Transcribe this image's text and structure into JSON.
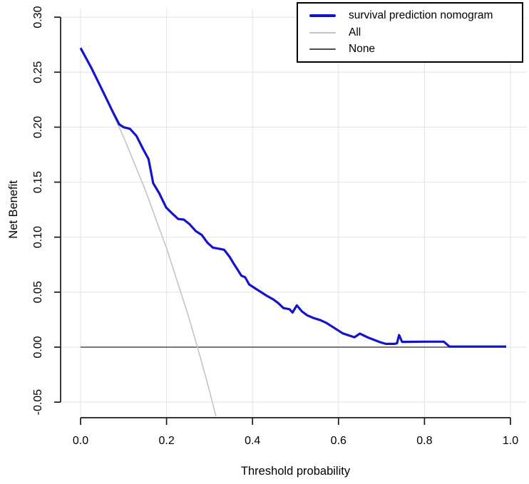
{
  "figure": {
    "x_axis_label": "Threshold probability",
    "y_axis_label": "Net Benefit"
  },
  "legend": {
    "position": "top-right",
    "items": [
      {
        "label": "survival prediction nomogram",
        "color": "#1414c8",
        "line_width": 4
      },
      {
        "label": "All",
        "color": "#c4c4c4",
        "line_width": 2
      },
      {
        "label": "None",
        "color": "#4d4d4d",
        "line_width": 2
      }
    ]
  },
  "chart_data": {
    "type": "line",
    "title": "",
    "xlabel": "Threshold probability",
    "ylabel": "Net Benefit",
    "xlim": [
      0,
      1
    ],
    "ylim": [
      -0.065,
      0.3
    ],
    "grid": true,
    "legend_position": "top-right",
    "x_ticks": [
      0.0,
      0.2,
      0.4,
      0.6,
      0.8,
      1.0
    ],
    "x_tick_labels": [
      "0.0",
      "0.2",
      "0.4",
      "0.6",
      "0.8",
      "1.0"
    ],
    "y_ticks": [
      -0.05,
      0.0,
      0.05,
      0.1,
      0.15,
      0.2,
      0.25,
      0.3
    ],
    "y_tick_labels": [
      "-0.05",
      "0.00",
      "0.05",
      "0.10",
      "0.15",
      "0.20",
      "0.25",
      "0.30"
    ],
    "colors": {
      "grid": "#e7e7e7",
      "axis": "#1a1a1a",
      "nomogram": "#1414c8",
      "all": "#c4c4c4",
      "none": "#4d4d4d"
    },
    "series": [
      {
        "name": "None",
        "color": "#4d4d4d",
        "width": 1.6,
        "points": [
          [
            0.0,
            0.0
          ],
          [
            0.99,
            0.0
          ]
        ]
      },
      {
        "name": "All",
        "color": "#c4c4c4",
        "width": 1.6,
        "points": [
          [
            0.0,
            0.272
          ],
          [
            0.05,
            0.2337
          ],
          [
            0.1,
            0.1911
          ],
          [
            0.15,
            0.1435
          ],
          [
            0.2,
            0.09
          ],
          [
            0.25,
            0.0293
          ],
          [
            0.28,
            -0.0111
          ],
          [
            0.3,
            -0.04
          ],
          [
            0.315,
            -0.0628
          ]
        ]
      },
      {
        "name": "survival prediction nomogram",
        "color": "#1414c8",
        "width": 3.2,
        "points": [
          [
            0.0,
            0.272
          ],
          [
            0.025,
            0.254
          ],
          [
            0.05,
            0.234
          ],
          [
            0.075,
            0.214
          ],
          [
            0.09,
            0.2025
          ],
          [
            0.1,
            0.2
          ],
          [
            0.115,
            0.1985
          ],
          [
            0.13,
            0.192
          ],
          [
            0.145,
            0.1805
          ],
          [
            0.158,
            0.171
          ],
          [
            0.169,
            0.149
          ],
          [
            0.183,
            0.14
          ],
          [
            0.199,
            0.127
          ],
          [
            0.212,
            0.122
          ],
          [
            0.227,
            0.1165
          ],
          [
            0.24,
            0.116
          ],
          [
            0.253,
            0.112
          ],
          [
            0.268,
            0.1055
          ],
          [
            0.282,
            0.102
          ],
          [
            0.295,
            0.095
          ],
          [
            0.308,
            0.0905
          ],
          [
            0.322,
            0.0895
          ],
          [
            0.334,
            0.0885
          ],
          [
            0.347,
            0.082
          ],
          [
            0.356,
            0.076
          ],
          [
            0.366,
            0.07
          ],
          [
            0.374,
            0.065
          ],
          [
            0.383,
            0.0635
          ],
          [
            0.392,
            0.057
          ],
          [
            0.41,
            0.0525
          ],
          [
            0.432,
            0.047
          ],
          [
            0.448,
            0.0435
          ],
          [
            0.46,
            0.04
          ],
          [
            0.472,
            0.0355
          ],
          [
            0.486,
            0.0345
          ],
          [
            0.493,
            0.0315
          ],
          [
            0.503,
            0.038
          ],
          [
            0.515,
            0.0325
          ],
          [
            0.527,
            0.029
          ],
          [
            0.542,
            0.0265
          ],
          [
            0.558,
            0.0245
          ],
          [
            0.572,
            0.022
          ],
          [
            0.584,
            0.019
          ],
          [
            0.61,
            0.0125
          ],
          [
            0.637,
            0.009
          ],
          [
            0.65,
            0.0123
          ],
          [
            0.667,
            0.009
          ],
          [
            0.697,
            0.0045
          ],
          [
            0.71,
            0.003
          ],
          [
            0.73,
            0.003
          ],
          [
            0.736,
            0.0035
          ],
          [
            0.741,
            0.011
          ],
          [
            0.748,
            0.0048
          ],
          [
            0.8,
            0.005
          ],
          [
            0.845,
            0.005
          ],
          [
            0.858,
            0.0005
          ],
          [
            0.99,
            0.0005
          ]
        ]
      }
    ]
  }
}
